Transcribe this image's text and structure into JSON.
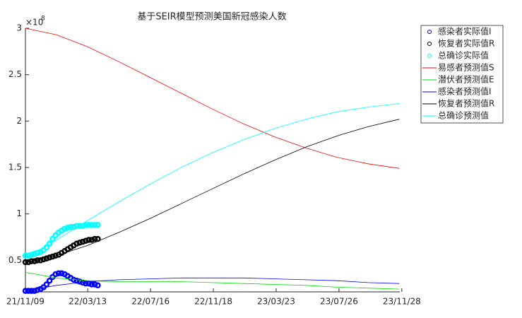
{
  "chart_data": {
    "type": "line",
    "title": "基于SEIR模型预测美国新冠感染人数",
    "y_multiplier": "×10",
    "y_exponent": "8",
    "xlim": [
      0,
      745
    ],
    "ylim": [
      0.16,
      3
    ],
    "xticks": [
      {
        "value": 0,
        "label": "21/11/09"
      },
      {
        "value": 124,
        "label": "22/03/13"
      },
      {
        "value": 249,
        "label": "22/07/16"
      },
      {
        "value": 374,
        "label": "22/11/18"
      },
      {
        "value": 499,
        "label": "23/03/23"
      },
      {
        "value": 624,
        "label": "23/07/26"
      },
      {
        "value": 749,
        "label": "23/11/28"
      }
    ],
    "yticks": [
      0.5,
      1,
      1.5,
      2,
      2.5,
      3
    ],
    "legend": "outside-right",
    "series": [
      {
        "name": "感染者实际值I",
        "color": "#0000ff",
        "marker": "o",
        "x": [
          0,
          6,
          12,
          18,
          24,
          30,
          36,
          42,
          48,
          54,
          60,
          66,
          72,
          78,
          84,
          90,
          96,
          102,
          108,
          114,
          120,
          126,
          132,
          138,
          144
        ],
        "values": [
          0.17,
          0.17,
          0.17,
          0.17,
          0.18,
          0.19,
          0.21,
          0.24,
          0.28,
          0.32,
          0.35,
          0.36,
          0.36,
          0.35,
          0.33,
          0.31,
          0.29,
          0.28,
          0.27,
          0.26,
          0.25,
          0.25,
          0.24,
          0.24,
          0.23
        ]
      },
      {
        "name": "恢复者实际值R",
        "color": "#000000",
        "marker": "o",
        "x": [
          0,
          6,
          12,
          18,
          24,
          30,
          36,
          42,
          48,
          54,
          60,
          66,
          72,
          78,
          84,
          90,
          96,
          102,
          108,
          114,
          120,
          126,
          132,
          138,
          144
        ],
        "values": [
          0.48,
          0.48,
          0.49,
          0.49,
          0.5,
          0.5,
          0.51,
          0.52,
          0.53,
          0.54,
          0.55,
          0.56,
          0.58,
          0.6,
          0.62,
          0.64,
          0.66,
          0.68,
          0.69,
          0.7,
          0.71,
          0.72,
          0.72,
          0.73,
          0.73
        ]
      },
      {
        "name": "总确诊实际值",
        "color": "#00ffff",
        "marker": "o",
        "x": [
          0,
          6,
          12,
          18,
          24,
          30,
          36,
          42,
          48,
          54,
          60,
          66,
          72,
          78,
          84,
          90,
          96,
          102,
          108,
          114,
          120,
          126,
          132,
          138,
          144
        ],
        "values": [
          0.55,
          0.55,
          0.56,
          0.57,
          0.58,
          0.59,
          0.61,
          0.64,
          0.68,
          0.73,
          0.77,
          0.8,
          0.82,
          0.84,
          0.85,
          0.86,
          0.86,
          0.87,
          0.87,
          0.87,
          0.88,
          0.88,
          0.88,
          0.88,
          0.88
        ]
      },
      {
        "name": "易感者预测值S",
        "color": "#ff0000",
        "x": [
          0,
          62,
          124,
          186,
          248,
          310,
          372,
          434,
          496,
          558,
          620,
          682,
          744
        ],
        "values": [
          3.0,
          2.93,
          2.8,
          2.64,
          2.47,
          2.3,
          2.13,
          1.97,
          1.83,
          1.71,
          1.61,
          1.54,
          1.49
        ]
      },
      {
        "name": "潜伏者预测值E",
        "color": "#00dd00",
        "x": [
          0,
          62,
          124,
          186,
          248,
          310,
          372,
          434,
          496,
          558,
          620,
          682,
          744
        ],
        "values": [
          0.37,
          0.31,
          0.28,
          0.27,
          0.27,
          0.27,
          0.26,
          0.25,
          0.24,
          0.23,
          0.21,
          0.2,
          0.19
        ]
      },
      {
        "name": "感染者预测值I",
        "color": "#0000ff",
        "x": [
          0,
          62,
          124,
          186,
          248,
          310,
          372,
          434,
          496,
          558,
          620,
          682,
          744
        ],
        "values": [
          0.17,
          0.23,
          0.27,
          0.29,
          0.3,
          0.31,
          0.31,
          0.31,
          0.3,
          0.29,
          0.28,
          0.26,
          0.25
        ]
      },
      {
        "name": "恢复者预测值R",
        "color": "#000000",
        "x": [
          0,
          62,
          124,
          186,
          248,
          310,
          372,
          434,
          496,
          558,
          620,
          682,
          744
        ],
        "values": [
          0.48,
          0.55,
          0.66,
          0.8,
          0.95,
          1.11,
          1.27,
          1.43,
          1.58,
          1.72,
          1.84,
          1.94,
          2.02
        ]
      },
      {
        "name": "总确诊预测值",
        "color": "#00ffff",
        "x": [
          0,
          62,
          124,
          186,
          248,
          310,
          372,
          434,
          496,
          558,
          620,
          682,
          744
        ],
        "values": [
          0.52,
          0.72,
          0.93,
          1.13,
          1.32,
          1.5,
          1.66,
          1.8,
          1.92,
          2.02,
          2.1,
          2.15,
          2.19
        ]
      }
    ]
  }
}
